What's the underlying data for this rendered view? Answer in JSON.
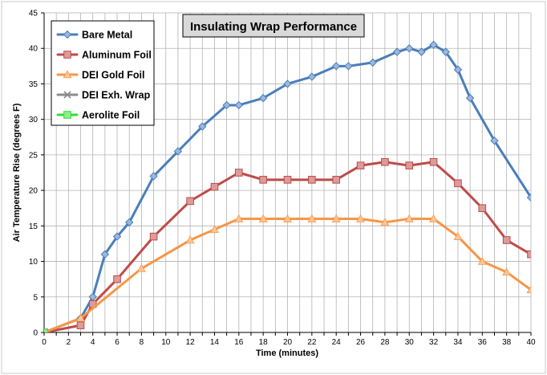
{
  "chart_data": {
    "type": "line",
    "title": "Insulating Wrap Performance",
    "xlabel": "Time (minutes)",
    "ylabel": "Air Temperature Rise (degrees F)",
    "xlim": [
      0,
      40
    ],
    "ylim": [
      0,
      45
    ],
    "xticks": [
      0,
      2,
      4,
      6,
      8,
      10,
      12,
      14,
      16,
      18,
      20,
      22,
      24,
      26,
      28,
      30,
      32,
      34,
      36,
      38,
      40
    ],
    "yticks": [
      0,
      5,
      10,
      15,
      20,
      25,
      30,
      35,
      40,
      45
    ],
    "grid": true,
    "legend_position": "top-left",
    "series": [
      {
        "name": "Bare Metal",
        "color": "#4a7ebb",
        "marker": "diamond",
        "points": [
          [
            0,
            0
          ],
          [
            3,
            2
          ],
          [
            4,
            5
          ],
          [
            5,
            11
          ],
          [
            6,
            13.5
          ],
          [
            7,
            15.5
          ],
          [
            9,
            22
          ],
          [
            11,
            25.5
          ],
          [
            13,
            29
          ],
          [
            15,
            32
          ],
          [
            16,
            32
          ],
          [
            18,
            33
          ],
          [
            20,
            35
          ],
          [
            22,
            36
          ],
          [
            24,
            37.5
          ],
          [
            25,
            37.5
          ],
          [
            27,
            38
          ],
          [
            29,
            39.5
          ],
          [
            30,
            40
          ],
          [
            31,
            39.5
          ],
          [
            32,
            40.5
          ],
          [
            33,
            39.5
          ],
          [
            34,
            37
          ],
          [
            35,
            33
          ],
          [
            37,
            27
          ],
          [
            40,
            19
          ]
        ]
      },
      {
        "name": "Aluminum Foil",
        "color": "#be4b48",
        "marker": "square",
        "points": [
          [
            0,
            0
          ],
          [
            3,
            1
          ],
          [
            4,
            4
          ],
          [
            6,
            7.5
          ],
          [
            9,
            13.5
          ],
          [
            12,
            18.5
          ],
          [
            14,
            20.5
          ],
          [
            16,
            22.5
          ],
          [
            18,
            21.5
          ],
          [
            20,
            21.5
          ],
          [
            22,
            21.5
          ],
          [
            24,
            21.5
          ],
          [
            26,
            23.5
          ],
          [
            28,
            24
          ],
          [
            30,
            23.5
          ],
          [
            32,
            24
          ],
          [
            34,
            21
          ],
          [
            36,
            17.5
          ],
          [
            38,
            13
          ],
          [
            40,
            11
          ]
        ]
      },
      {
        "name": "DEI Gold Foil",
        "color": "#f79646",
        "marker": "triangle",
        "points": [
          [
            0,
            0
          ],
          [
            3,
            2
          ],
          [
            8,
            9
          ],
          [
            12,
            13
          ],
          [
            14,
            14.5
          ],
          [
            16,
            16
          ],
          [
            18,
            16
          ],
          [
            20,
            16
          ],
          [
            22,
            16
          ],
          [
            24,
            16
          ],
          [
            26,
            16
          ],
          [
            28,
            15.5
          ],
          [
            30,
            16
          ],
          [
            32,
            16
          ],
          [
            34,
            13.5
          ],
          [
            36,
            10
          ],
          [
            38,
            8.5
          ],
          [
            40,
            6
          ]
        ]
      },
      {
        "name": "DEI Exh. Wrap",
        "color": "#8c8c8c",
        "marker": "x",
        "points": [
          [
            0,
            0
          ]
        ]
      },
      {
        "name": "Aerolite Foil",
        "color": "#33dd33",
        "marker": "square",
        "points": [
          [
            0,
            0
          ]
        ]
      }
    ]
  }
}
